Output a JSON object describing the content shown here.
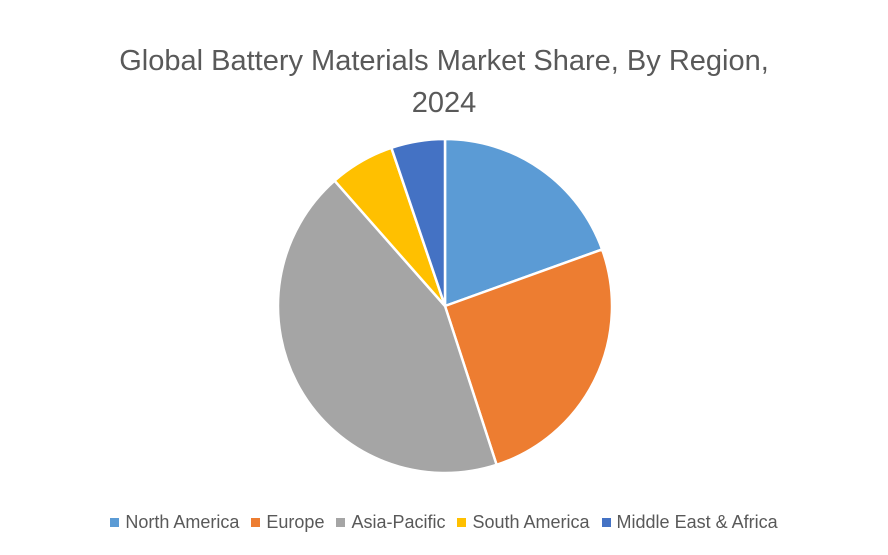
{
  "chart_data": {
    "type": "pie",
    "title": "Global Battery Materials Market Share, By Region, 2024",
    "categories": [
      "North America",
      "Europe",
      "Asia-Pacific",
      "South America",
      "Middle East & Africa"
    ],
    "values": [
      19.5,
      25.5,
      43.5,
      6.3,
      5.2
    ],
    "unit": "%",
    "colors": [
      "#5b9bd5",
      "#ed7d31",
      "#a5a5a5",
      "#ffc000",
      "#4472c4"
    ],
    "start_angle_deg": 0,
    "direction": "clockwise",
    "legend_position": "bottom",
    "data_labels_shown": false
  }
}
